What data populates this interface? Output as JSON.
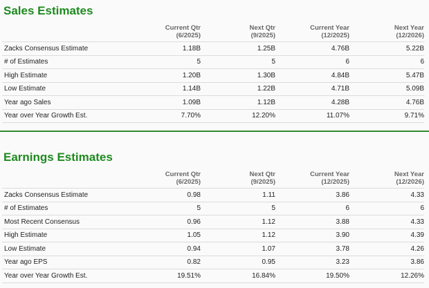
{
  "colors": {
    "title_green": "#1f8a1f",
    "divider_green": "#2e8b2e",
    "row_border": "#dcdcdc"
  },
  "sales": {
    "title": "Sales Estimates",
    "columns": [
      {
        "line1": "Current Qtr",
        "line2": "(6/2025)"
      },
      {
        "line1": "Next Qtr",
        "line2": "(9/2025)"
      },
      {
        "line1": "Current Year",
        "line2": "(12/2025)"
      },
      {
        "line1": "Next Year",
        "line2": "(12/2026)"
      }
    ],
    "rows": [
      {
        "label": "Zacks Consensus Estimate",
        "values": [
          "1.18B",
          "1.25B",
          "4.76B",
          "5.22B"
        ]
      },
      {
        "label": "# of Estimates",
        "values": [
          "5",
          "5",
          "6",
          "6"
        ]
      },
      {
        "label": "High Estimate",
        "values": [
          "1.20B",
          "1.30B",
          "4.84B",
          "5.47B"
        ]
      },
      {
        "label": "Low Estimate",
        "values": [
          "1.14B",
          "1.22B",
          "4.71B",
          "5.09B"
        ]
      },
      {
        "label": "Year ago Sales",
        "values": [
          "1.09B",
          "1.12B",
          "4.28B",
          "4.76B"
        ]
      },
      {
        "label": "Year over Year Growth Est.",
        "values": [
          "7.70%",
          "12.20%",
          "11.07%",
          "9.71%"
        ]
      }
    ]
  },
  "earnings": {
    "title": "Earnings Estimates",
    "columns": [
      {
        "line1": "Current Qtr",
        "line2": "(6/2025)"
      },
      {
        "line1": "Next Qtr",
        "line2": "(9/2025)"
      },
      {
        "line1": "Current Year",
        "line2": "(12/2025)"
      },
      {
        "line1": "Next Year",
        "line2": "(12/2026)"
      }
    ],
    "rows": [
      {
        "label": "Zacks Consensus Estimate",
        "values": [
          "0.98",
          "1.11",
          "3.86",
          "4.33"
        ]
      },
      {
        "label": "# of Estimates",
        "values": [
          "5",
          "5",
          "6",
          "6"
        ]
      },
      {
        "label": "Most Recent Consensus",
        "values": [
          "0.96",
          "1.12",
          "3.88",
          "4.33"
        ]
      },
      {
        "label": "High Estimate",
        "values": [
          "1.05",
          "1.12",
          "3.90",
          "4.39"
        ]
      },
      {
        "label": "Low Estimate",
        "values": [
          "0.94",
          "1.07",
          "3.78",
          "4.26"
        ]
      },
      {
        "label": "Year ago EPS",
        "values": [
          "0.82",
          "0.95",
          "3.23",
          "3.86"
        ]
      },
      {
        "label": "Year over Year Growth Est.",
        "values": [
          "19.51%",
          "16.84%",
          "19.50%",
          "12.26%"
        ]
      }
    ]
  }
}
